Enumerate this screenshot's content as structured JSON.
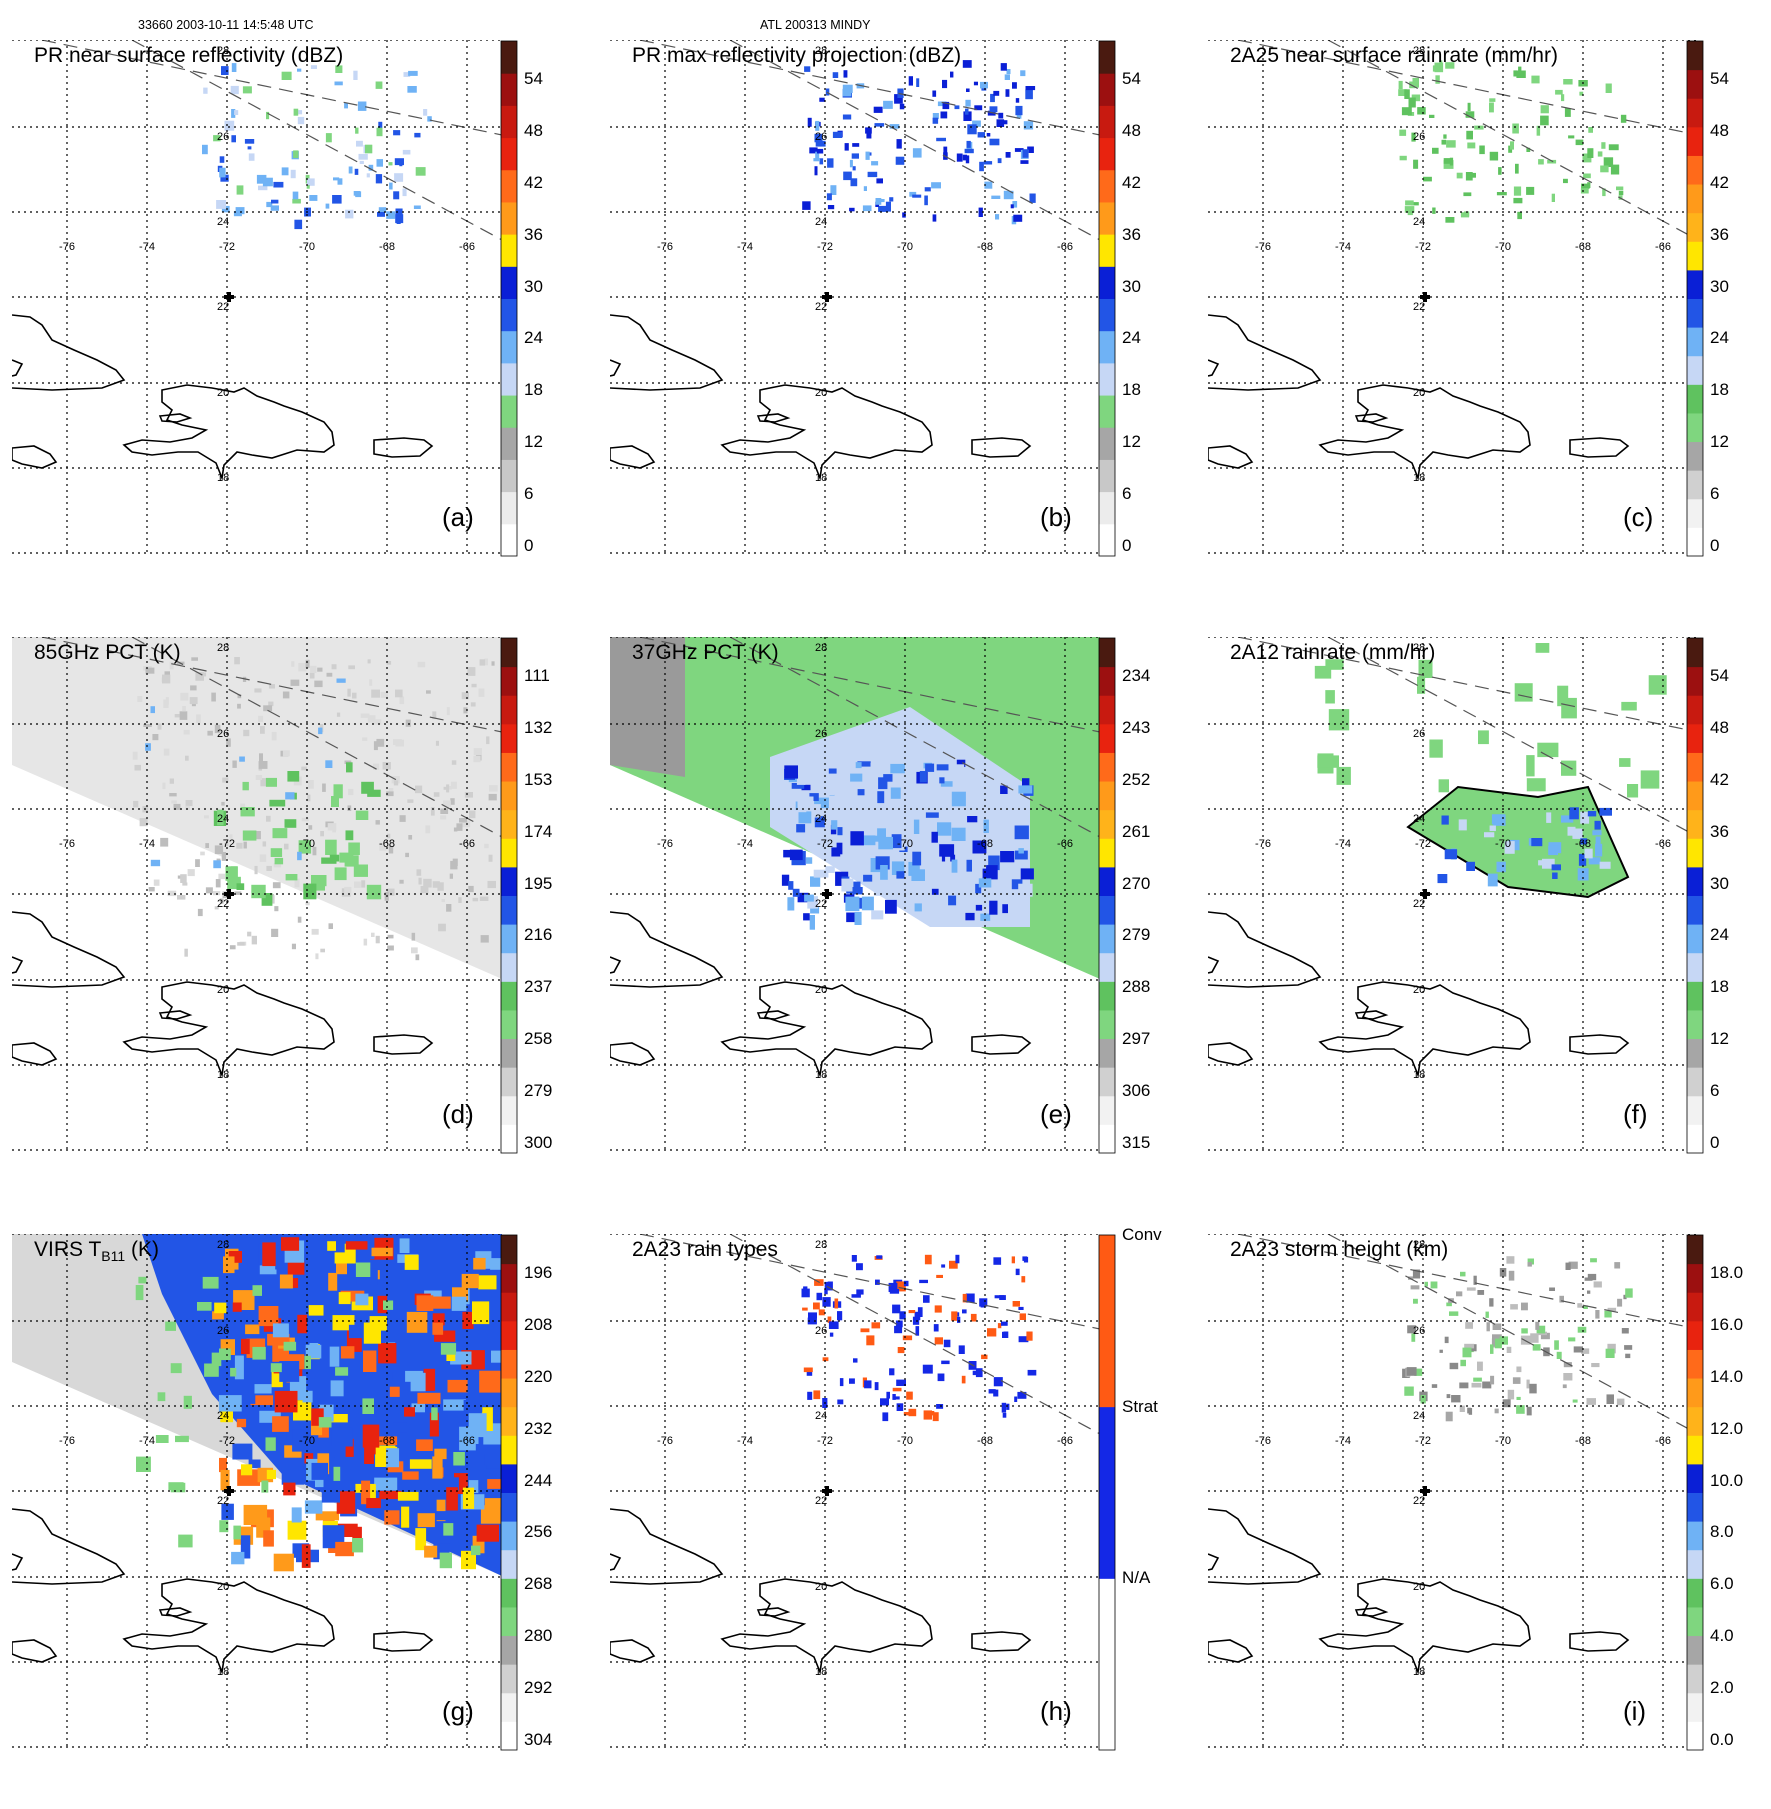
{
  "header": {
    "orbit_time": "33660 2003-10-11 14:5:48 UTC",
    "storm": "ATL 200313 MINDY"
  },
  "map": {
    "lon_labels": [
      "-76",
      "-74",
      "-72",
      "-70",
      "-68",
      "-66"
    ],
    "lat_labels": [
      "28",
      "26",
      "24",
      "22",
      "20",
      "18"
    ],
    "center_marker": "storm-center-cross"
  },
  "colors": {
    "white": "#ffffff",
    "lightgray": "#d9d9d9",
    "gray": "#a6a6a6",
    "green": "#7fd67f",
    "paleblue": "#c6d7f5",
    "lightblue": "#6fb2f5",
    "blue": "#2255e6",
    "darkblue": "#0a1fd6",
    "yellow": "#ffe600",
    "orange": "#ff9a1a",
    "red": "#e8230f",
    "darkred": "#9c1010",
    "brown": "#4a1a10",
    "conv": "#ff5a14",
    "strat": "#1428e6"
  },
  "panels": [
    {
      "id": "a",
      "title": "PR near surface reflectivity (dBZ)",
      "label": "(a)",
      "colorbar": {
        "ticks": [
          "54",
          "48",
          "42",
          "36",
          "30",
          "24",
          "18",
          "12",
          "6",
          "0"
        ]
      }
    },
    {
      "id": "b",
      "title": "PR max reflectivity projection (dBZ)",
      "label": "(b)",
      "colorbar": {
        "ticks": [
          "54",
          "48",
          "42",
          "36",
          "30",
          "24",
          "18",
          "12",
          "6",
          "0"
        ]
      }
    },
    {
      "id": "c",
      "title": "2A25 near surface rainrate (mm/hr)",
      "label": "(c)",
      "colorbar": {
        "ticks": [
          "54",
          "48",
          "42",
          "36",
          "30",
          "24",
          "18",
          "12",
          "6",
          "0"
        ]
      }
    },
    {
      "id": "d",
      "title": "85GHz PCT (K)",
      "label": "(d)",
      "colorbar": {
        "ticks": [
          "111",
          "132",
          "153",
          "174",
          "195",
          "216",
          "237",
          "258",
          "279",
          "300"
        ]
      }
    },
    {
      "id": "e",
      "title": "37GHz PCT (K)",
      "label": "(e)",
      "colorbar": {
        "ticks": [
          "234",
          "243",
          "252",
          "261",
          "270",
          "279",
          "288",
          "297",
          "306",
          "315"
        ]
      }
    },
    {
      "id": "f",
      "title": "2A12 rainrate (mm/hr)",
      "label": "(f)",
      "colorbar": {
        "ticks": [
          "54",
          "48",
          "42",
          "36",
          "30",
          "24",
          "18",
          "12",
          "6",
          "0"
        ]
      }
    },
    {
      "id": "g",
      "title": "VIRS T",
      "title_sub": "B11",
      "title_suffix": " (K)",
      "label": "(g)",
      "colorbar": {
        "ticks": [
          "196",
          "208",
          "220",
          "232",
          "244",
          "256",
          "268",
          "280",
          "292",
          "304"
        ]
      }
    },
    {
      "id": "h",
      "title": "2A23 rain types",
      "label": "(h)",
      "colorbar": {
        "ticks": [
          "Conv",
          "Strat",
          "N/A"
        ]
      }
    },
    {
      "id": "i",
      "title": "2A23 storm height (km)",
      "label": "(i)",
      "colorbar": {
        "ticks": [
          "18.0",
          "16.0",
          "14.0",
          "12.0",
          "10.0",
          "8.0",
          "6.0",
          "4.0",
          "2.0",
          "0.0"
        ]
      }
    }
  ],
  "chart_data": [
    {
      "type": "heatmap",
      "title": "PR near surface reflectivity (dBZ)",
      "colorbar_range": [
        0,
        60
      ],
      "colorbar_ticks": [
        0,
        6,
        12,
        18,
        24,
        30,
        36,
        42,
        48,
        54
      ]
    },
    {
      "type": "heatmap",
      "title": "PR max reflectivity projection (dBZ)",
      "colorbar_range": [
        0,
        60
      ],
      "colorbar_ticks": [
        0,
        6,
        12,
        18,
        24,
        30,
        36,
        42,
        48,
        54
      ]
    },
    {
      "type": "heatmap",
      "title": "2A25 near surface rainrate (mm/hr)",
      "colorbar_range": [
        0,
        60
      ],
      "colorbar_ticks": [
        0,
        6,
        12,
        18,
        24,
        30,
        36,
        42,
        48,
        54
      ]
    },
    {
      "type": "heatmap",
      "title": "85GHz PCT (K)",
      "colorbar_range": [
        300,
        90
      ],
      "colorbar_ticks": [
        300,
        279,
        258,
        237,
        216,
        195,
        174,
        153,
        132,
        111
      ]
    },
    {
      "type": "heatmap",
      "title": "37GHz PCT (K)",
      "colorbar_range": [
        315,
        225
      ],
      "colorbar_ticks": [
        315,
        306,
        297,
        288,
        279,
        270,
        261,
        252,
        243,
        234
      ]
    },
    {
      "type": "heatmap",
      "title": "2A12 rainrate (mm/hr)",
      "colorbar_range": [
        0,
        60
      ],
      "colorbar_ticks": [
        0,
        6,
        12,
        18,
        24,
        30,
        36,
        42,
        48,
        54
      ]
    },
    {
      "type": "heatmap",
      "title": "VIRS T B11 (K)",
      "colorbar_range": [
        304,
        184
      ],
      "colorbar_ticks": [
        304,
        292,
        280,
        268,
        256,
        244,
        232,
        220,
        208,
        196
      ]
    },
    {
      "type": "heatmap",
      "title": "2A23 rain types",
      "categories": [
        "N/A",
        "Strat",
        "Conv"
      ]
    },
    {
      "type": "heatmap",
      "title": "2A23 storm height (km)",
      "colorbar_range": [
        0,
        20
      ],
      "colorbar_ticks": [
        0,
        2,
        4,
        6,
        8,
        10,
        12,
        14,
        16,
        18
      ]
    }
  ]
}
